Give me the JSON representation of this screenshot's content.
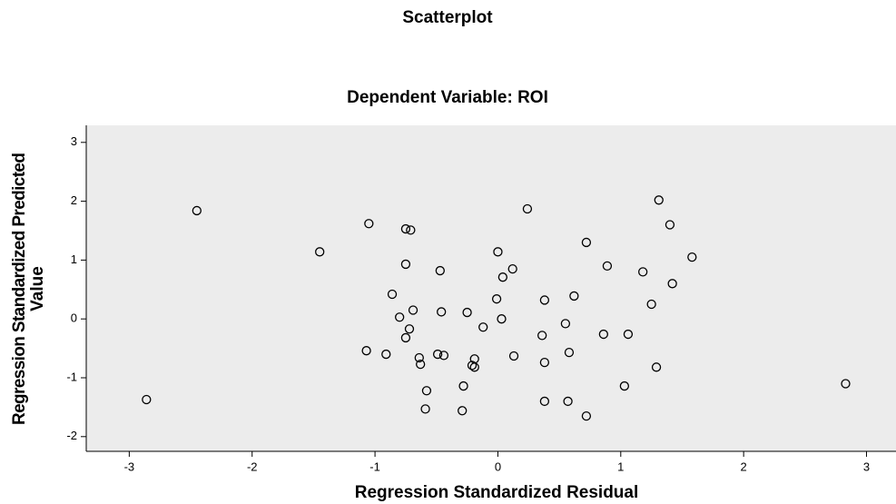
{
  "chart_data": {
    "type": "scatter",
    "title": "Scatterplot",
    "subtitle": "Dependent Variable: ROI",
    "x_label": "Regression Standardized Residual",
    "y_label": [
      "Regression Standardized Predicted",
      "Value"
    ],
    "color": "#000000",
    "xlim": [
      -3.35,
      3.24
    ],
    "ylim": [
      -2.25,
      3.29
    ],
    "xticks": [
      -3,
      -2,
      -1,
      0,
      1,
      2,
      3
    ],
    "yticks": [
      -2,
      -1,
      0,
      1,
      2,
      3
    ],
    "x": [
      -2.45,
      -2.86,
      -1.45,
      -1.05,
      -0.75,
      -0.71,
      -0.75,
      -0.47,
      -0.86,
      -0.69,
      -0.8,
      -0.72,
      -0.75,
      -0.46,
      -1.07,
      -0.91,
      -0.64,
      -0.63,
      -0.49,
      -0.44,
      -0.25,
      -0.12,
      -0.58,
      -0.59,
      -0.29,
      -0.28,
      -0.19,
      -0.21,
      -0.19,
      0.0,
      0.04,
      0.12,
      -0.01,
      0.03,
      0.24,
      0.13,
      0.38,
      0.36,
      0.38,
      0.38,
      0.62,
      0.55,
      0.58,
      0.57,
      0.72,
      0.72,
      0.89,
      0.86,
      1.06,
      1.03,
      1.18,
      1.25,
      1.29,
      1.31,
      1.4,
      1.42,
      1.58,
      2.83
    ],
    "values": [
      1.84,
      -1.37,
      1.14,
      1.62,
      1.53,
      1.51,
      0.93,
      0.82,
      0.42,
      0.15,
      0.03,
      -0.17,
      -0.32,
      0.12,
      -0.54,
      -0.6,
      -0.66,
      -0.77,
      -0.6,
      -0.62,
      0.11,
      -0.14,
      -1.22,
      -1.53,
      -1.56,
      -1.14,
      -0.68,
      -0.79,
      -0.82,
      1.14,
      0.71,
      0.85,
      0.34,
      0.0,
      1.87,
      -0.63,
      0.32,
      -0.28,
      -0.74,
      -1.4,
      0.39,
      -0.08,
      -0.57,
      -1.4,
      1.3,
      -1.65,
      0.9,
      -0.26,
      -0.26,
      -1.14,
      0.8,
      0.25,
      -0.82,
      2.02,
      1.6,
      0.6,
      1.05,
      -1.1
    ]
  }
}
